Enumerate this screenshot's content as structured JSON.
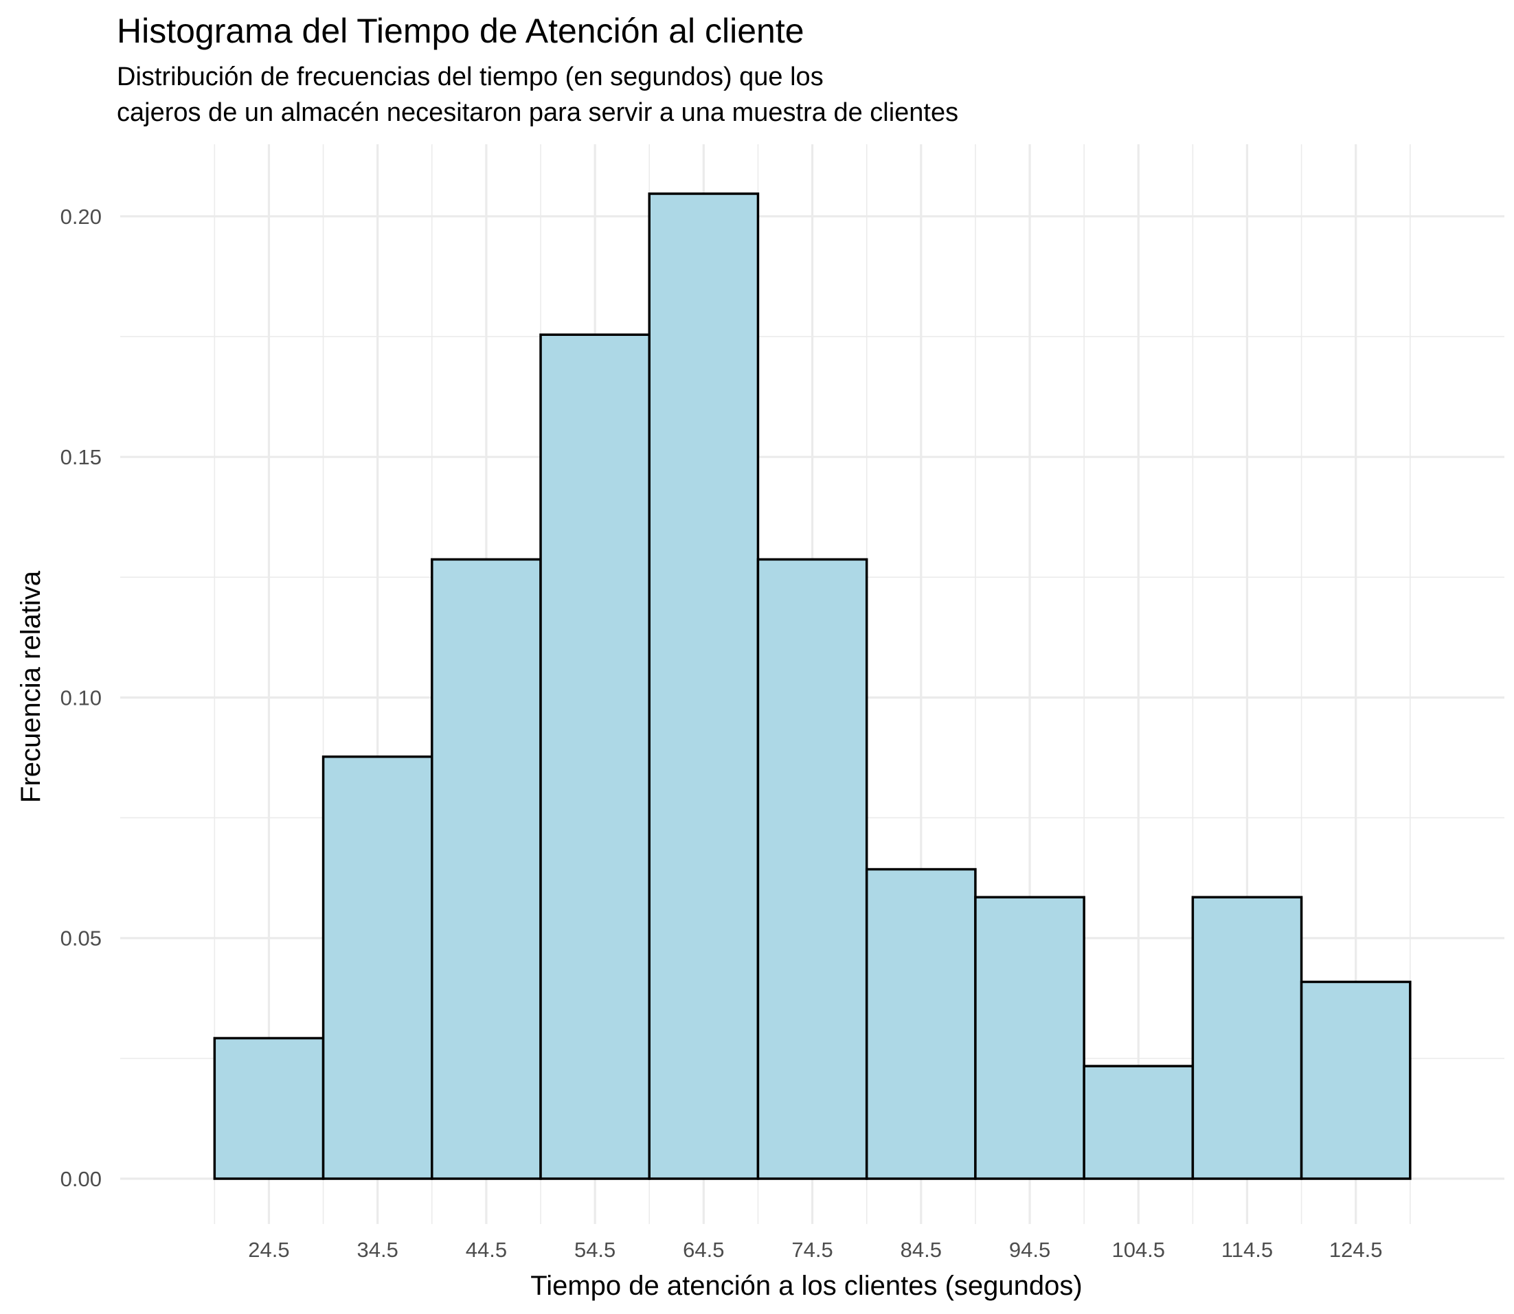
{
  "chart_data": {
    "type": "bar",
    "title": "Histograma del Tiempo de Atención al cliente",
    "subtitle_lines": [
      "Distribución de frecuencias del tiempo (en segundos) que los",
      "cajeros de un almacén necesitaron para servir a una muestra de clientes"
    ],
    "xlabel": "Tiempo de atención a los clientes (segundos)",
    "ylabel": "Frecuencia relativa",
    "categories": [
      "24.5",
      "34.5",
      "44.5",
      "54.5",
      "64.5",
      "74.5",
      "84.5",
      "94.5",
      "104.5",
      "114.5",
      "124.5"
    ],
    "midpoints": [
      24.5,
      34.5,
      44.5,
      54.5,
      64.5,
      74.5,
      84.5,
      94.5,
      104.5,
      114.5,
      124.5
    ],
    "bin_width": 10,
    "values": [
      0.0292,
      0.0877,
      0.1287,
      0.1754,
      0.2047,
      0.1287,
      0.0643,
      0.0585,
      0.0234,
      0.0585,
      0.0409
    ],
    "xlim": [
      19.5,
      129.5
    ],
    "ylim": [
      0,
      0.2047
    ],
    "yticks": [
      0.0,
      0.05,
      0.1,
      0.15,
      0.2
    ],
    "ytick_labels": [
      "0.00",
      "0.05",
      "0.10",
      "0.15",
      "0.20"
    ],
    "grid": true,
    "legend": "none",
    "colors": {
      "bar_fill": "#add8e6",
      "bar_stroke": "#000000",
      "grid": "#ebebeb"
    }
  }
}
